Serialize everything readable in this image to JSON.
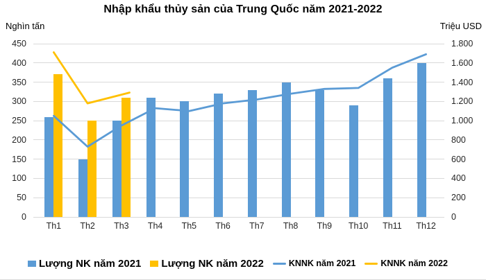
{
  "title": "Nhập khẩu thủy sản của Trung Quốc năm 2021-2022",
  "axes": {
    "left": {
      "unit": "Nghìn tấn",
      "range": [
        0,
        450
      ],
      "ticks": [
        "450",
        "400",
        "350",
        "300",
        "250",
        "200",
        "150",
        "100",
        "50",
        "0"
      ]
    },
    "right": {
      "unit": "Triệu USD",
      "range": [
        0,
        1800
      ],
      "ticks": [
        "1.800",
        "1.600",
        "1.400",
        "1.200",
        "1.000",
        "800",
        "600",
        "400",
        "200",
        "0"
      ]
    }
  },
  "colors": {
    "blue": "#5B9BD5",
    "yellow": "#FFC000",
    "grid": "#D9D9D9"
  },
  "chart_data": {
    "type": "bar+line combo",
    "categories": [
      "Th1",
      "Th2",
      "Th3",
      "Th4",
      "Th5",
      "Th6",
      "Th7",
      "Th8",
      "Th9",
      "Th10",
      "Th11",
      "Th12"
    ],
    "series": [
      {
        "name": "Lượng NK năm 2021",
        "type": "bar",
        "axis": "left",
        "color": "#5B9BD5",
        "values": [
          260,
          150,
          250,
          310,
          300,
          320,
          330,
          350,
          330,
          290,
          360,
          400
        ]
      },
      {
        "name": "Lượng NK năm 2022",
        "type": "bar",
        "axis": "left",
        "color": "#FFC000",
        "values": [
          370,
          250,
          310,
          null,
          null,
          null,
          null,
          null,
          null,
          null,
          null,
          null
        ]
      },
      {
        "name": "KNNK năm 2021",
        "type": "line",
        "axis": "right",
        "color": "#5B9BD5",
        "values": [
          1050,
          730,
          950,
          1130,
          1100,
          1180,
          1220,
          1280,
          1330,
          1340,
          1550,
          1690
        ]
      },
      {
        "name": "KNNK năm 2022",
        "type": "line",
        "axis": "right",
        "color": "#FFC000",
        "values": [
          1710,
          1180,
          1270,
          null,
          null,
          null,
          null,
          null,
          null,
          null,
          null,
          null
        ]
      }
    ],
    "xlabel": "",
    "ylabel_left": "Nghìn tấn",
    "ylabel_right": "Triệu USD",
    "ylim_left": [
      0,
      450
    ],
    "ylim_right": [
      0,
      1800
    ],
    "grid": true,
    "legend_position": "bottom"
  }
}
